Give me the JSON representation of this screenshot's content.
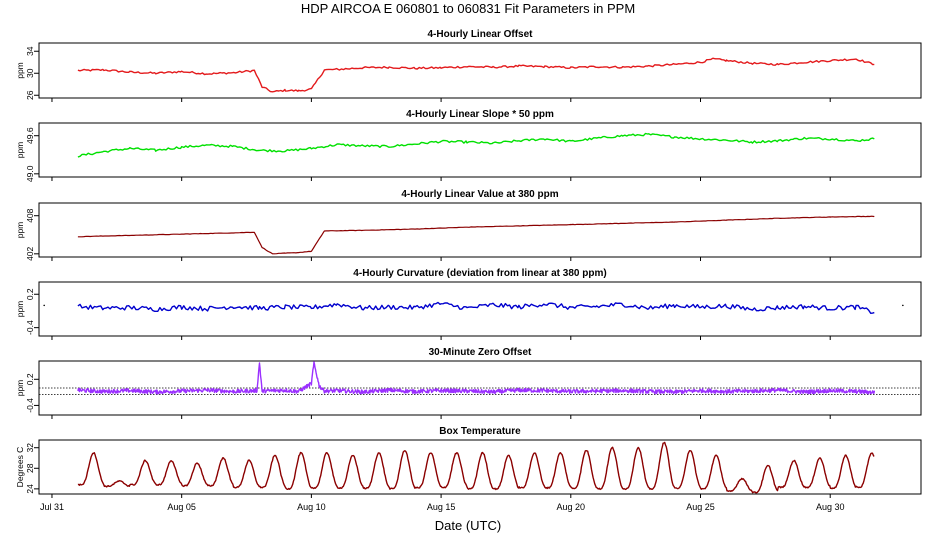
{
  "figure": {
    "title": "HDP   AIRCOA E   060801 to 060831   Fit Parameters in PPM",
    "xlabel": "Date (UTC)",
    "x_ticks": [
      "Jul 31",
      "Aug 05",
      "Aug 10",
      "Aug 15",
      "Aug 20",
      "Aug 25",
      "Aug 30"
    ],
    "x_tick_days": [
      0,
      5,
      10,
      15,
      20,
      25,
      30
    ],
    "xlim_days": [
      -0.5,
      33.5
    ],
    "x_origin": "2006-07-31"
  },
  "chart_data": [
    {
      "type": "line",
      "title": "4-Hourly Linear Offset",
      "ylabel": "ppm",
      "yticks": [
        "26",
        "30",
        "34"
      ],
      "ytick_values": [
        26,
        30,
        34
      ],
      "ylim": [
        25.5,
        35.5
      ],
      "color": "#e31a1c",
      "series": [
        {
          "x": [
            1.0,
            2.0,
            3.0,
            4.0,
            5.0,
            6.0,
            7.0,
            7.8,
            8.1,
            8.5,
            9.0,
            9.5,
            10.0,
            10.5,
            11.0,
            12.0,
            13.0,
            14.0,
            15.0,
            16.0,
            17.0,
            18.0,
            19.0,
            20.0,
            21.0,
            22.0,
            23.0,
            24.0,
            25.0,
            25.5,
            26.0,
            27.0,
            28.0,
            29.0,
            30.0,
            31.0,
            31.7
          ],
          "y": [
            30.5,
            30.6,
            30.2,
            30.0,
            30.3,
            29.9,
            30.1,
            30.5,
            27.5,
            26.6,
            26.9,
            26.8,
            27.1,
            30.6,
            30.7,
            31.0,
            31.1,
            30.9,
            31.0,
            31.2,
            31.1,
            31.3,
            31.2,
            31.0,
            31.2,
            31.1,
            31.3,
            31.6,
            32.0,
            32.6,
            32.3,
            31.8,
            31.6,
            32.0,
            32.3,
            32.6,
            31.6
          ]
        }
      ]
    },
    {
      "type": "line",
      "title": "4-Hourly Linear Slope * 50 ppm",
      "ylabel": "ppm",
      "yticks": [
        "49.0",
        "49.6"
      ],
      "ytick_values": [
        49.0,
        49.6
      ],
      "ylim": [
        48.95,
        49.8
      ],
      "color": "#00e000",
      "series": [
        {
          "x": [
            1.0,
            2.0,
            3.0,
            4.0,
            5.0,
            6.0,
            7.0,
            8.0,
            9.0,
            10.0,
            11.0,
            12.0,
            13.0,
            14.0,
            15.0,
            16.0,
            17.0,
            18.0,
            19.0,
            20.0,
            21.0,
            22.0,
            23.0,
            24.0,
            25.0,
            26.0,
            27.0,
            28.0,
            29.0,
            30.0,
            31.0,
            31.7
          ],
          "y": [
            49.28,
            49.35,
            49.4,
            49.37,
            49.42,
            49.45,
            49.43,
            49.37,
            49.36,
            49.4,
            49.46,
            49.44,
            49.43,
            49.47,
            49.51,
            49.5,
            49.48,
            49.52,
            49.55,
            49.51,
            49.56,
            49.6,
            49.62,
            49.58,
            49.55,
            49.53,
            49.5,
            49.52,
            49.56,
            49.55,
            49.52,
            49.55
          ]
        }
      ]
    },
    {
      "type": "line",
      "title": "4-Hourly Linear Value at 380 ppm",
      "ylabel": "ppm",
      "yticks": [
        "402",
        "408"
      ],
      "ytick_values": [
        402,
        408
      ],
      "ylim": [
        401.5,
        410.0
      ],
      "color": "#8b0000",
      "series": [
        {
          "x": [
            1.0,
            3.0,
            5.0,
            7.0,
            7.8,
            8.1,
            8.5,
            9.0,
            9.5,
            10.0,
            10.5,
            12.0,
            14.0,
            16.0,
            18.0,
            20.0,
            22.0,
            24.0,
            26.0,
            28.0,
            30.0,
            31.7
          ],
          "y": [
            404.7,
            404.9,
            405.1,
            405.3,
            405.4,
            403.0,
            402.0,
            402.1,
            402.2,
            402.4,
            405.6,
            405.7,
            405.9,
            406.2,
            406.4,
            406.6,
            406.8,
            407.0,
            407.3,
            407.6,
            407.8,
            407.9
          ]
        }
      ]
    },
    {
      "type": "line",
      "title": "4-Hourly Curvature (deviation from linear at 380 ppm)",
      "ylabel": "ppm",
      "yticks": [
        "-0.4",
        "0.2"
      ],
      "ytick_values": [
        -0.4,
        0.2
      ],
      "ylim": [
        -0.55,
        0.42
      ],
      "color": "#0000cd",
      "series": [
        {
          "x": [
            1.0,
            2.0,
            3.0,
            4.0,
            5.0,
            6.0,
            7.0,
            8.0,
            9.0,
            10.0,
            11.0,
            12.0,
            13.0,
            14.0,
            15.0,
            16.0,
            17.0,
            18.0,
            19.0,
            20.0,
            21.0,
            22.0,
            23.0,
            24.0,
            25.0,
            26.0,
            27.0,
            28.0,
            29.0,
            30.0,
            31.0,
            31.7
          ],
          "y": [
            -0.02,
            -0.05,
            -0.04,
            -0.07,
            -0.03,
            -0.06,
            -0.02,
            -0.05,
            -0.03,
            -0.04,
            0.02,
            -0.05,
            -0.03,
            -0.04,
            0.03,
            -0.05,
            0.01,
            -0.03,
            0.03,
            -0.04,
            -0.02,
            0.02,
            -0.05,
            0.0,
            -0.03,
            -0.01,
            -0.07,
            -0.04,
            -0.02,
            -0.05,
            -0.03,
            -0.13
          ]
        }
      ]
    },
    {
      "type": "line",
      "title": "30-Minute Zero Offset",
      "ylabel": "ppm",
      "yticks": [
        "-0.4",
        "0.2"
      ],
      "ytick_values": [
        -0.4,
        0.2
      ],
      "ylim": [
        -0.62,
        0.62
      ],
      "reference_lines": [
        0.0,
        -0.15
      ],
      "color": "#9b30ff",
      "series": [
        {
          "x": [
            1.0,
            2.0,
            3.0,
            4.0,
            5.0,
            6.0,
            7.0,
            7.9,
            8.0,
            8.1,
            9.0,
            9.5,
            10.0,
            10.1,
            10.3,
            10.5,
            11.0,
            12.0,
            13.0,
            14.0,
            15.0,
            16.0,
            17.0,
            18.0,
            19.0,
            20.0,
            21.0,
            22.0,
            23.0,
            24.0,
            25.0,
            26.0,
            27.0,
            28.0,
            29.0,
            30.0,
            31.0,
            31.7
          ],
          "y": [
            -0.05,
            -0.08,
            -0.06,
            -0.09,
            -0.07,
            -0.05,
            -0.08,
            -0.06,
            0.58,
            -0.07,
            -0.05,
            -0.08,
            0.1,
            0.58,
            0.05,
            -0.07,
            -0.06,
            -0.09,
            -0.05,
            -0.08,
            -0.06,
            -0.07,
            -0.09,
            -0.05,
            -0.06,
            -0.08,
            -0.07,
            -0.06,
            -0.08,
            -0.09,
            -0.06,
            -0.08,
            -0.07,
            -0.05,
            -0.09,
            -0.06,
            -0.08,
            -0.1
          ]
        }
      ]
    },
    {
      "type": "line",
      "title": "Box Temperature",
      "ylabel": "Degrees C",
      "yticks": [
        "24",
        "28",
        "32"
      ],
      "ytick_values": [
        24,
        28,
        32
      ],
      "ylim": [
        23.0,
        33.5
      ],
      "color": "#8b0000",
      "daily_cycle": {
        "day_start": 1.0,
        "day_end": 31.7,
        "peak_hour_fraction": 0.6,
        "peaks": [
          31.0,
          25.5,
          29.5,
          29.5,
          29.0,
          30.0,
          29.5,
          30.5,
          31.0,
          31.0,
          30.5,
          31.0,
          31.5,
          31.0,
          31.0,
          31.0,
          30.5,
          31.0,
          31.0,
          31.5,
          32.0,
          32.0,
          33.0,
          31.5,
          30.5,
          26.0,
          28.5,
          29.5,
          30.0,
          30.5,
          31.0,
          31.5
        ],
        "troughs": [
          24.8,
          24.5,
          24.8,
          24.8,
          24.6,
          24.6,
          24.3,
          24.3,
          24.0,
          24.2,
          24.2,
          24.1,
          24.0,
          24.2,
          24.3,
          24.0,
          24.0,
          24.2,
          24.2,
          24.1,
          24.0,
          24.0,
          24.0,
          24.1,
          24.0,
          23.5,
          23.3,
          24.3,
          24.3,
          24.1,
          24.3,
          25.0
        ]
      }
    }
  ]
}
